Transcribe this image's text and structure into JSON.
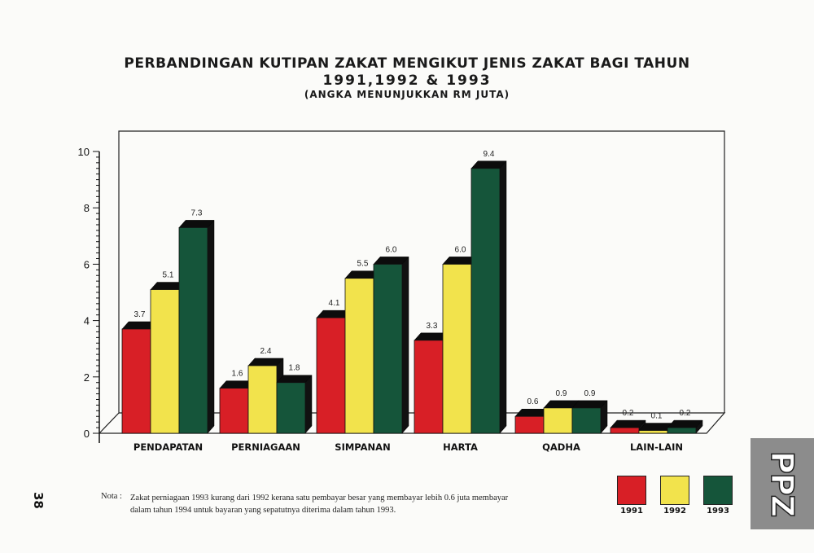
{
  "title": {
    "line1": "PERBANDINGAN KUTIPAN ZAKAT MENGIKUT JENIS ZAKAT BAGI TAHUN",
    "line2": "1991,1992 & 1993",
    "line3": "(ANGKA MENUNJUKKAN RM JUTA)"
  },
  "chart_data": {
    "type": "bar",
    "categories": [
      "PENDAPATAN",
      "PERNIAGAAN",
      "SIMPANAN",
      "HARTA",
      "QADHA",
      "LAIN-LAIN"
    ],
    "series": [
      {
        "name": "1991",
        "values": [
          3.7,
          1.6,
          4.1,
          3.3,
          0.6,
          0.2
        ]
      },
      {
        "name": "1992",
        "values": [
          5.1,
          2.4,
          5.5,
          6.0,
          0.9,
          0.1
        ]
      },
      {
        "name": "1993",
        "values": [
          7.3,
          1.8,
          6.0,
          9.4,
          0.9,
          0.2
        ]
      }
    ],
    "data_labels": [
      [
        "3.7",
        "5.1",
        "7.3"
      ],
      [
        "1.6",
        "2.4",
        "1.8"
      ],
      [
        "4.1",
        "5.5",
        "6.0"
      ],
      [
        "3.3",
        "6.0",
        "9.4"
      ],
      [
        "0.6",
        "0.9",
        "0.9"
      ],
      [
        "0.2",
        "0.1",
        "0.2"
      ]
    ],
    "ylim": [
      0,
      10
    ],
    "yticks": [
      "0",
      "2",
      "4",
      "6",
      "8",
      "10"
    ],
    "colors": [
      "#d81f26",
      "#f2e34c",
      "#15553a"
    ],
    "style": "3d-bars",
    "legend_position": "bottom-right"
  },
  "page_number": "38",
  "note": {
    "label": "Nota :",
    "text": "Zakat perniagaan 1993 kurang dari 1992 kerana satu pembayar besar yang membayar lebih 0.6 juta membayar dalam tahun 1994 untuk bayaran yang sepatutnya diterima dalam tahun 1993."
  },
  "legend": {
    "items": [
      {
        "label": "1991",
        "color": "#d81f26"
      },
      {
        "label": "1992",
        "color": "#f2e34c"
      },
      {
        "label": "1993",
        "color": "#15553a"
      }
    ]
  },
  "side_tab": {
    "text": "PPZ"
  }
}
